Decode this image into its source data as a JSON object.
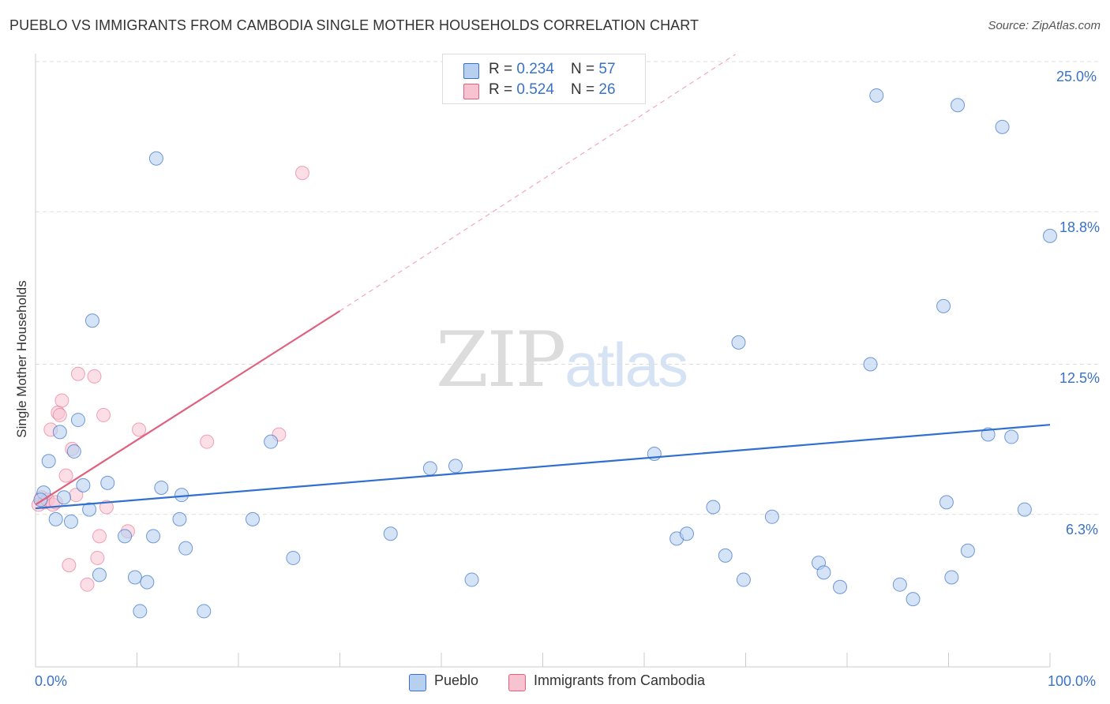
{
  "header": {
    "title": "PUEBLO VS IMMIGRANTS FROM CAMBODIA SINGLE MOTHER HOUSEHOLDS CORRELATION CHART",
    "source": "Source: ZipAtlas.com"
  },
  "legend_top": {
    "rows": [
      {
        "r_label": "R = ",
        "r_value": "0.234",
        "n_label": "N = ",
        "n_value": "57"
      },
      {
        "r_label": "R = ",
        "r_value": "0.524",
        "n_label": "N = ",
        "n_value": "26"
      }
    ]
  },
  "legend_bottom": {
    "items": [
      {
        "label": "Pueblo"
      },
      {
        "label": "Immigrants from Cambodia"
      }
    ]
  },
  "axes": {
    "ylabel": "Single Mother Households",
    "x_tick_left": "0.0%",
    "x_tick_right": "100.0%",
    "y_ticks": [
      "25.0%",
      "18.8%",
      "12.5%",
      "6.3%"
    ]
  },
  "watermark": {
    "zip": "ZIP",
    "atlas": "atlas"
  },
  "colors": {
    "blue": "#3a72c6",
    "blue_fill": "#b8d0f0",
    "blue_line": "#2f6fcf",
    "pink": "#e0607f",
    "pink_fill": "#f8c3d1",
    "grid": "#dddddd"
  },
  "chart_data": {
    "type": "scatter",
    "title": "PUEBLO VS IMMIGRANTS FROM CAMBODIA SINGLE MOTHER HOUSEHOLDS CORRELATION CHART",
    "xlabel": "",
    "ylabel": "Single Mother Households",
    "xlim": [
      0,
      100
    ],
    "ylim": [
      0,
      25.0
    ],
    "y_gridlines": [
      6.3,
      12.5,
      18.8,
      25.0
    ],
    "legend_position": "top-center",
    "series": [
      {
        "name": "Pueblo",
        "color": "#3a72c6",
        "r": 0.234,
        "n": 57,
        "trend": {
          "x": [
            0,
            100
          ],
          "y": [
            6.55,
            10.0
          ]
        },
        "points": [
          [
            0.8,
            7.2
          ],
          [
            1.3,
            8.5
          ],
          [
            2.0,
            6.1
          ],
          [
            2.4,
            9.7
          ],
          [
            2.8,
            7.0
          ],
          [
            3.5,
            6.0
          ],
          [
            3.8,
            8.9
          ],
          [
            4.2,
            10.2
          ],
          [
            4.7,
            7.5
          ],
          [
            5.3,
            6.5
          ],
          [
            5.6,
            14.3
          ],
          [
            6.3,
            3.8
          ],
          [
            7.1,
            7.6
          ],
          [
            8.8,
            5.4
          ],
          [
            9.8,
            3.7
          ],
          [
            10.3,
            2.3
          ],
          [
            11.0,
            3.5
          ],
          [
            11.6,
            5.4
          ],
          [
            11.9,
            21.0
          ],
          [
            12.4,
            7.4
          ],
          [
            14.2,
            6.1
          ],
          [
            14.4,
            7.1
          ],
          [
            14.8,
            4.9
          ],
          [
            16.6,
            2.3
          ],
          [
            21.4,
            6.1
          ],
          [
            23.2,
            9.3
          ],
          [
            25.4,
            4.5
          ],
          [
            35.0,
            5.5
          ],
          [
            38.9,
            8.2
          ],
          [
            41.4,
            8.3
          ],
          [
            43.0,
            3.6
          ],
          [
            61.0,
            8.8
          ],
          [
            63.2,
            5.3
          ],
          [
            64.2,
            5.5
          ],
          [
            66.8,
            6.6
          ],
          [
            68.0,
            4.6
          ],
          [
            69.3,
            13.4
          ],
          [
            69.8,
            3.6
          ],
          [
            72.6,
            6.2
          ],
          [
            77.2,
            4.3
          ],
          [
            77.7,
            3.9
          ],
          [
            79.3,
            3.3
          ],
          [
            82.3,
            12.5
          ],
          [
            82.9,
            23.6
          ],
          [
            85.2,
            3.4
          ],
          [
            86.5,
            2.8
          ],
          [
            89.5,
            14.9
          ],
          [
            89.8,
            6.8
          ],
          [
            90.3,
            3.7
          ],
          [
            90.9,
            23.2
          ],
          [
            91.9,
            4.8
          ],
          [
            93.9,
            9.6
          ],
          [
            95.3,
            22.3
          ],
          [
            96.2,
            9.5
          ],
          [
            97.5,
            6.5
          ],
          [
            100.0,
            17.8
          ],
          [
            0.5,
            6.9
          ]
        ]
      },
      {
        "name": "Immigrants from Cambodia",
        "color": "#e0607f",
        "r": 0.524,
        "n": 26,
        "trend": {
          "x": [
            0,
            30
          ],
          "y": [
            6.7,
            14.7
          ]
        },
        "trend_dashed": {
          "x": [
            30,
            69
          ],
          "y": [
            14.7,
            25.3
          ]
        },
        "points": [
          [
            0.3,
            6.7
          ],
          [
            0.6,
            7.0
          ],
          [
            0.9,
            6.8
          ],
          [
            1.2,
            6.9
          ],
          [
            1.5,
            9.8
          ],
          [
            1.7,
            6.7
          ],
          [
            2.0,
            6.8
          ],
          [
            2.2,
            10.5
          ],
          [
            2.4,
            10.4
          ],
          [
            2.6,
            11.0
          ],
          [
            3.0,
            7.9
          ],
          [
            3.3,
            4.2
          ],
          [
            3.6,
            9.0
          ],
          [
            4.0,
            7.1
          ],
          [
            4.2,
            12.1
          ],
          [
            5.1,
            3.4
          ],
          [
            5.8,
            12.0
          ],
          [
            6.1,
            4.5
          ],
          [
            6.3,
            5.4
          ],
          [
            6.7,
            10.4
          ],
          [
            7.0,
            6.6
          ],
          [
            9.1,
            5.6
          ],
          [
            10.2,
            9.8
          ],
          [
            16.9,
            9.3
          ],
          [
            24.0,
            9.6
          ],
          [
            26.3,
            20.4
          ]
        ]
      }
    ]
  }
}
